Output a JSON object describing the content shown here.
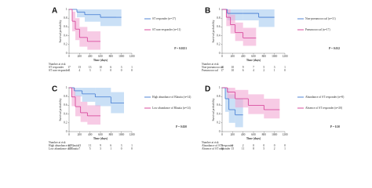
{
  "chart_data": [
    {
      "type": "km",
      "panel": "A",
      "ylabel": "Survival probability",
      "xlabel": "Time (days)",
      "pvalue": "P = 0.0251",
      "xlim": [
        0,
        1200
      ],
      "xticks": [
        0,
        200,
        400,
        600,
        800,
        1000,
        1200
      ],
      "ylim": [
        0,
        1
      ],
      "yticks": [
        0,
        0.2,
        0.4,
        0.6,
        0.8,
        1.0
      ],
      "series": [
        {
          "name": "ST responder (n=17)",
          "color": "#3f78d1",
          "band_color": "#a7cbf0",
          "x": [
            0,
            150,
            300,
            600,
            900,
            1000
          ],
          "values": [
            1,
            0.94,
            0.88,
            0.82,
            0.82,
            0.82
          ],
          "lower": [
            1,
            0.82,
            0.72,
            0.62,
            0.62,
            0.62
          ],
          "upper": [
            1,
            1,
            1,
            1,
            1,
            1
          ]
        },
        {
          "name": "ST non-responder (n=11)",
          "color": "#d43a94",
          "band_color": "#f2a8d3",
          "x": [
            0,
            60,
            120,
            200,
            350,
            600
          ],
          "values": [
            1,
            0.73,
            0.55,
            0.36,
            0.27,
            0.27
          ],
          "lower": [
            1,
            0.5,
            0.3,
            0.15,
            0.08,
            0.08
          ],
          "upper": [
            1,
            0.95,
            0.8,
            0.6,
            0.5,
            0.5
          ]
        }
      ],
      "risk_table": {
        "title": "Number at risk",
        "rows": [
          {
            "name": "ST responder",
            "counts": [
              17,
              15,
              13,
              10,
              6,
              3,
              1
            ]
          },
          {
            "name": "ST non-responder",
            "counts": [
              11,
              4,
              3,
              1,
              0,
              0,
              0
            ]
          }
        ]
      }
    },
    {
      "type": "km",
      "panel": "B",
      "ylabel": "Survival probability",
      "xlabel": "Time (days)",
      "pvalue": "P = 0.012",
      "xlim": [
        0,
        1200
      ],
      "xticks": [
        0,
        200,
        400,
        600,
        800,
        1000,
        1200
      ],
      "ylim": [
        0,
        1
      ],
      "yticks": [
        0,
        0.2,
        0.4,
        0.6,
        0.8,
        1.0
      ],
      "series": [
        {
          "name": "Non-pneumococcal (n=11)",
          "color": "#3f78d1",
          "band_color": "#a7cbf0",
          "x": [
            0,
            100,
            400,
            700,
            1000
          ],
          "values": [
            1,
            0.91,
            0.91,
            0.82,
            0.82
          ],
          "lower": [
            1,
            0.75,
            0.75,
            0.6,
            0.6
          ],
          "upper": [
            1,
            1,
            1,
            1,
            1
          ]
        },
        {
          "name": "Pneumococcal (n=17)",
          "color": "#d43a94",
          "band_color": "#f2a8d3",
          "x": [
            0,
            80,
            160,
            250,
            400,
            650
          ],
          "values": [
            1,
            0.82,
            0.65,
            0.47,
            0.35,
            0.35
          ],
          "lower": [
            1,
            0.62,
            0.45,
            0.28,
            0.17,
            0.17
          ],
          "upper": [
            1,
            1,
            0.88,
            0.7,
            0.58,
            0.58
          ]
        }
      ],
      "risk_table": {
        "title": "Number at risk",
        "rows": [
          {
            "name": "Non-pneumococcal",
            "counts": [
              11,
              10,
              9,
              7,
              5,
              3,
              1
            ]
          },
          {
            "name": "Pneumococcal",
            "counts": [
              17,
              10,
              6,
              4,
              2,
              1,
              0
            ]
          }
        ]
      }
    },
    {
      "type": "km",
      "panel": "C",
      "ylabel": "Survival probability",
      "xlabel": "Time (days)",
      "pvalue": "P = 0.020",
      "xlim": [
        0,
        1200
      ],
      "xticks": [
        0,
        200,
        400,
        600,
        800,
        1000,
        1200
      ],
      "ylim": [
        0,
        1
      ],
      "yticks": [
        0,
        0.2,
        0.4,
        0.6,
        0.8,
        1.0
      ],
      "series": [
        {
          "name": "High abundance of Blautia (n=14)",
          "color": "#3f78d1",
          "band_color": "#a7cbf0",
          "x": [
            0,
            100,
            250,
            500,
            800,
            1050
          ],
          "values": [
            1,
            0.93,
            0.86,
            0.79,
            0.65,
            0.65
          ],
          "lower": [
            1,
            0.8,
            0.68,
            0.58,
            0.42,
            0.42
          ],
          "upper": [
            1,
            1,
            1,
            1,
            0.9,
            0.9
          ]
        },
        {
          "name": "Low abundance of Blautia (n=14)",
          "color": "#d43a94",
          "band_color": "#f2a8d3",
          "x": [
            0,
            50,
            120,
            220,
            350,
            600
          ],
          "values": [
            1,
            0.79,
            0.57,
            0.43,
            0.36,
            0.36
          ],
          "lower": [
            1,
            0.58,
            0.35,
            0.22,
            0.16,
            0.16
          ],
          "upper": [
            1,
            1,
            0.82,
            0.68,
            0.6,
            0.6
          ]
        }
      ],
      "risk_table": {
        "title": "Number at risk",
        "rows": [
          {
            "name": "High abundance of Blautia",
            "counts": [
              14,
              13,
              11,
              9,
              6,
              3,
              1
            ]
          },
          {
            "name": "Low abundance of Blautia",
            "counts": [
              14,
              7,
              5,
              3,
              1,
              0,
              0
            ]
          }
        ]
      }
    },
    {
      "type": "km",
      "panel": "D",
      "ylabel": "Survival probability",
      "xlabel": "Time (days)",
      "pvalue": "P = 0.30",
      "xlim": [
        0,
        1200
      ],
      "xticks": [
        0,
        200,
        400,
        600,
        800,
        1000,
        1200
      ],
      "ylim": [
        0,
        1
      ],
      "yticks": [
        0,
        0.2,
        0.4,
        0.6,
        0.8,
        1.0
      ],
      "series": [
        {
          "name": "Abundance of ST responder (n=8)",
          "color": "#3f78d1",
          "band_color": "#a7cbf0",
          "x": [
            0,
            60,
            130,
            250,
            400
          ],
          "values": [
            1,
            0.75,
            0.5,
            0.38,
            0.38
          ],
          "lower": [
            1,
            0.45,
            0.2,
            0.1,
            0.1
          ],
          "upper": [
            1,
            1,
            0.85,
            0.75,
            0.75
          ]
        },
        {
          "name": "Absence of ST responder (n=20)",
          "color": "#d43a94",
          "band_color": "#f2a8d3",
          "x": [
            0,
            100,
            250,
            500,
            800,
            1100
          ],
          "values": [
            1,
            0.9,
            0.75,
            0.6,
            0.5,
            0.5
          ],
          "lower": [
            1,
            0.75,
            0.55,
            0.4,
            0.3,
            0.3
          ],
          "upper": [
            1,
            1,
            0.95,
            0.85,
            0.75,
            0.75
          ]
        }
      ],
      "risk_table": {
        "title": "Number at risk",
        "rows": [
          {
            "name": "Abundance of ST responder",
            "counts": [
              8,
              4,
              2,
              0,
              0,
              0,
              0
            ]
          },
          {
            "name": "Absence of ST responder",
            "counts": [
              20,
              15,
              11,
              8,
              5,
              2,
              1
            ]
          }
        ]
      }
    }
  ]
}
